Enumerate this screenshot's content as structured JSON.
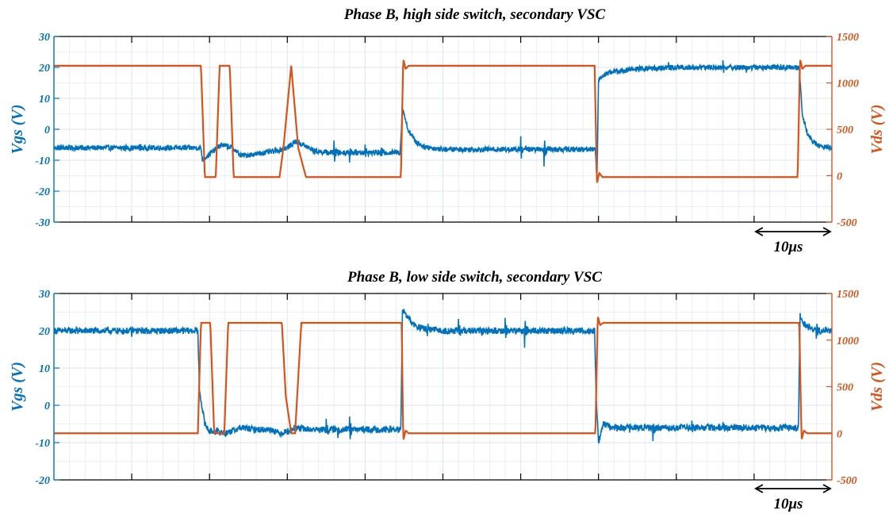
{
  "colors": {
    "vgs": "#0072BD",
    "vds": "#D95319",
    "grid": "#dce6f0",
    "axis": "#000000"
  },
  "chart_data": [
    {
      "type": "line",
      "title": "Phase B, high side switch, secondary VSC",
      "xlabel": "",
      "ylabel": "Vgs (V)",
      "ylabel_right": "Vds (V)",
      "xlim": [
        0,
        100
      ],
      "ylim": [
        -30,
        30
      ],
      "ylim_right": [
        -500,
        1500
      ],
      "yticks": [
        30,
        20,
        10,
        0,
        -10,
        -20,
        -30
      ],
      "ytick_labels": [
        "30",
        "20",
        "10",
        "0",
        "-10",
        "-20",
        "-30"
      ],
      "yticks_right": [
        1500,
        1000,
        500,
        0,
        -500
      ],
      "ytick_labels_right": [
        "1500",
        "1000",
        "500",
        "0",
        "-500"
      ],
      "xticks": [
        10,
        20,
        30,
        40,
        50,
        60,
        70,
        80,
        90
      ],
      "grid": true,
      "scale_bar": {
        "from": 90,
        "to": 100,
        "label": "10μs"
      },
      "series": [
        {
          "name": "Vgs",
          "axis": "left",
          "x": [
            0,
            18.9,
            19.1,
            20,
            21.5,
            23,
            24,
            26,
            28.5,
            30,
            31,
            32,
            33.5,
            35,
            44.5,
            44.8,
            45.5,
            46.5,
            47.5,
            48.5,
            50,
            69.6,
            69.8,
            70,
            70.6,
            71.5,
            75,
            80,
            85,
            90,
            95.8,
            96.2,
            96.8,
            97.5,
            98.5,
            100
          ],
          "y": [
            -6,
            -6,
            -10,
            -8,
            -5,
            -6,
            -8.5,
            -8,
            -7,
            -6,
            -4,
            -5,
            -7,
            -7.5,
            -7.5,
            7,
            0,
            -4,
            -5.5,
            -6,
            -6.5,
            -6.5,
            -16,
            16,
            17.5,
            18.5,
            19.5,
            20,
            20,
            20,
            20,
            5,
            -1,
            -4,
            -5.5,
            -6
          ],
          "spikes": [
            [
              11,
              1.5
            ],
            [
              36,
              4
            ],
            [
              38,
              -3
            ],
            [
              40,
              3
            ],
            [
              42,
              -2
            ],
            [
              60,
              4
            ],
            [
              63,
              -5
            ],
            [
              79,
              2
            ],
            [
              86,
              2
            ],
            [
              89,
              -1
            ]
          ]
        },
        {
          "name": "Vds",
          "axis": "right",
          "x": [
            0,
            18.9,
            19.4,
            20.8,
            21.3,
            22.6,
            23.1,
            24.4,
            24.9,
            29,
            29.5,
            30.5,
            31.4,
            32.4,
            44.6,
            44.9,
            45.2,
            45.6,
            69.5,
            69.8,
            70.1,
            70.5,
            95.6,
            95.9,
            96.2,
            96.6,
            100
          ],
          "y": [
            1185,
            1185,
            -15,
            -15,
            1185,
            1185,
            -15,
            -15,
            -15,
            -15,
            300,
            1185,
            300,
            -15,
            -15,
            1260,
            1150,
            1185,
            1185,
            -80,
            30,
            -15,
            -15,
            1260,
            1150,
            1185,
            1185
          ]
        }
      ]
    },
    {
      "type": "line",
      "title": "Phase B, low side switch, secondary VSC",
      "xlabel": "",
      "ylabel": "Vgs (V)",
      "ylabel_right": "Vds (V)",
      "xlim": [
        0,
        100
      ],
      "ylim": [
        -20,
        30
      ],
      "ylim_right": [
        -500,
        1500
      ],
      "yticks": [
        30,
        20,
        10,
        0,
        -10,
        -20
      ],
      "ytick_labels": [
        "30",
        "20",
        "10",
        "0",
        "-10",
        "-20"
      ],
      "yticks_right": [
        1500,
        1000,
        500,
        0,
        -500
      ],
      "ytick_labels_right": [
        "1500",
        "1000",
        "500",
        "0",
        "-500"
      ],
      "xticks": [
        10,
        20,
        30,
        40,
        50,
        60,
        70,
        80,
        90
      ],
      "grid": true,
      "scale_bar": {
        "from": 90,
        "to": 100,
        "label": "10μs"
      },
      "series": [
        {
          "name": "Vgs",
          "axis": "left",
          "x": [
            0,
            18.5,
            18.7,
            19.4,
            20,
            21,
            22,
            24,
            26,
            28,
            29,
            30,
            31,
            33,
            44.6,
            44.8,
            45.3,
            46.3,
            47.5,
            50,
            69.5,
            69.7,
            70,
            70.6,
            72,
            75,
            95.7,
            95.9,
            96.3,
            97,
            98.5,
            100
          ],
          "y": [
            20,
            20,
            4,
            -5,
            -7,
            -7,
            -7.5,
            -6,
            -6.5,
            -6.5,
            -7.5,
            -7,
            -6,
            -6.5,
            -6.5,
            26,
            24,
            21.5,
            20.5,
            20,
            20,
            2,
            -10,
            -5,
            -6,
            -6,
            -6,
            24,
            22,
            21,
            20,
            20
          ],
          "spikes": [
            [
              3,
              1
            ],
            [
              10,
              -2
            ],
            [
              35,
              3
            ],
            [
              36.5,
              -2
            ],
            [
              38,
              4
            ],
            [
              35,
              0
            ],
            [
              48,
              -2
            ],
            [
              52,
              3
            ],
            [
              55,
              -2
            ],
            [
              58,
              3
            ],
            [
              60.5,
              -4
            ],
            [
              74,
              -2
            ],
            [
              77,
              -3
            ],
            [
              82,
              2
            ],
            [
              86,
              2
            ],
            [
              90,
              -1
            ],
            [
              98,
              -2
            ]
          ]
        },
        {
          "name": "Vds",
          "axis": "right",
          "x": [
            0,
            18.5,
            18.9,
            20.1,
            20.6,
            21.9,
            22.4,
            24.2,
            24.7,
            29.3,
            29.8,
            30.5,
            31,
            31.8,
            44.7,
            44.9,
            45.2,
            45.6,
            69.6,
            69.9,
            70.2,
            70.6,
            95.8,
            96.1,
            96.4,
            96.8,
            100
          ],
          "y": [
            0,
            0,
            1185,
            1185,
            0,
            0,
            1185,
            1185,
            1185,
            1185,
            400,
            0,
            0,
            1185,
            1185,
            -80,
            30,
            0,
            0,
            1260,
            1160,
            1185,
            1185,
            -70,
            30,
            0,
            0
          ]
        }
      ]
    }
  ]
}
